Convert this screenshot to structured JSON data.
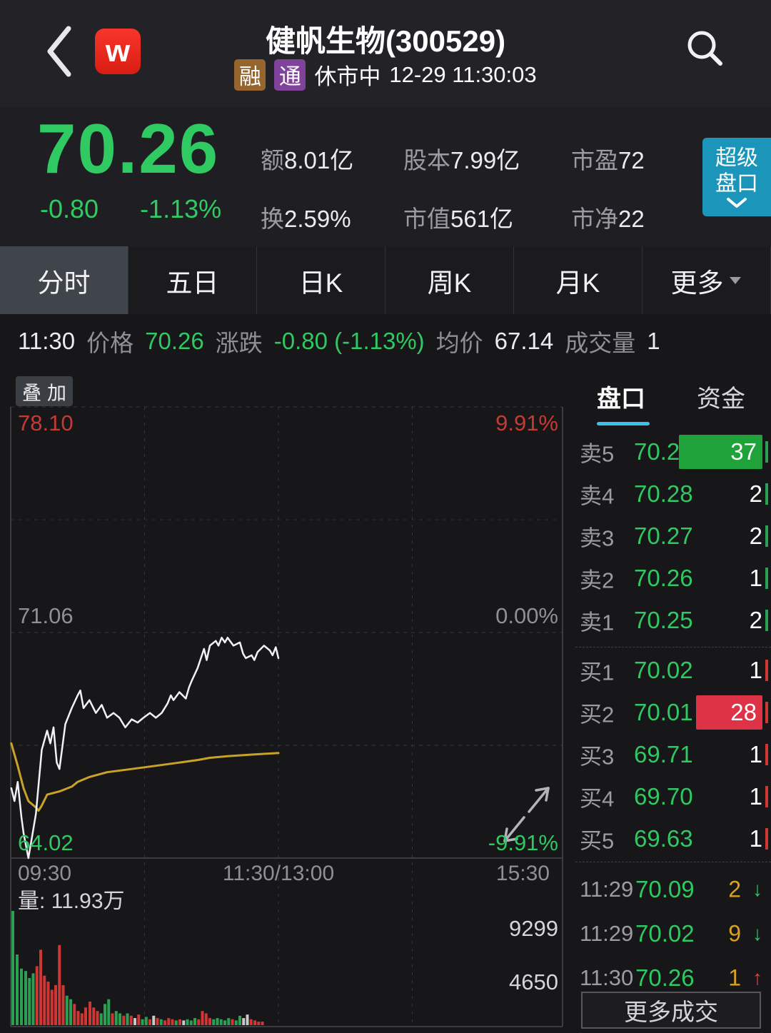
{
  "header": {
    "title": "健帆生物(300529)",
    "tags": [
      "融",
      "通"
    ],
    "status": "休市中",
    "datetime": "12-29 11:30:03"
  },
  "quote": {
    "price": "70.26",
    "change": "-0.80",
    "change_pct": "-1.13%",
    "stats": [
      {
        "label": "额",
        "value": "8.01亿"
      },
      {
        "label": "股本",
        "value": "7.99亿"
      },
      {
        "label": "市盈",
        "value": "72"
      },
      {
        "label": "换",
        "value": "2.59%"
      },
      {
        "label": "市值",
        "value": "561亿"
      },
      {
        "label": "市净",
        "value": "22"
      }
    ],
    "super_button": "超级盘口"
  },
  "tabs": [
    {
      "label": "分时",
      "active": true
    },
    {
      "label": "五日",
      "active": false
    },
    {
      "label": "日K",
      "active": false
    },
    {
      "label": "周K",
      "active": false
    },
    {
      "label": "月K",
      "active": false
    },
    {
      "label": "更多",
      "active": false,
      "has_caret": true
    }
  ],
  "ticker": {
    "time": "11:30",
    "price_label": "价格",
    "price": "70.26",
    "change_label": "涨跌",
    "change": "-0.80 (-1.13%)",
    "avg_label": "均价",
    "avg": "67.14",
    "vol_label": "成交量",
    "vol": "1"
  },
  "chart": {
    "overlay_button": "叠加",
    "y_left": [
      "78.10",
      "71.06",
      "64.02"
    ],
    "y_right": [
      "9.91%",
      "0.00%",
      "-9.91%"
    ],
    "x_labels": [
      "09:30",
      "11:30/13:00",
      "15:30"
    ],
    "volume_label": "量: 11.93万",
    "volume_ticks": [
      "9299",
      "4650"
    ],
    "axis": {
      "high": 78.1,
      "mid": 71.06,
      "low": 64.02
    },
    "price_line": [
      [
        0.001,
        66.2
      ],
      [
        0.007,
        65.8
      ],
      [
        0.013,
        66.4
      ],
      [
        0.02,
        65.3
      ],
      [
        0.024,
        64.8
      ],
      [
        0.033,
        64.02
      ],
      [
        0.04,
        64.7
      ],
      [
        0.047,
        65.4
      ],
      [
        0.058,
        67.4
      ],
      [
        0.068,
        68.0
      ],
      [
        0.074,
        67.6
      ],
      [
        0.08,
        68.1
      ],
      [
        0.086,
        67.0
      ],
      [
        0.091,
        66.8
      ],
      [
        0.102,
        68.2
      ],
      [
        0.114,
        68.7
      ],
      [
        0.125,
        69.1
      ],
      [
        0.13,
        69.25
      ],
      [
        0.136,
        68.7
      ],
      [
        0.147,
        68.95
      ],
      [
        0.159,
        68.55
      ],
      [
        0.17,
        68.8
      ],
      [
        0.18,
        68.4
      ],
      [
        0.192,
        68.55
      ],
      [
        0.203,
        68.4
      ],
      [
        0.214,
        68.1
      ],
      [
        0.226,
        68.35
      ],
      [
        0.237,
        68.25
      ],
      [
        0.248,
        68.4
      ],
      [
        0.26,
        68.55
      ],
      [
        0.271,
        68.4
      ],
      [
        0.282,
        68.55
      ],
      [
        0.293,
        68.85
      ],
      [
        0.299,
        69.1
      ],
      [
        0.304,
        68.95
      ],
      [
        0.315,
        69.2
      ],
      [
        0.327,
        69.0
      ],
      [
        0.333,
        69.35
      ],
      [
        0.338,
        69.55
      ],
      [
        0.349,
        69.95
      ],
      [
        0.361,
        70.55
      ],
      [
        0.366,
        70.2
      ],
      [
        0.372,
        70.65
      ],
      [
        0.383,
        70.8
      ],
      [
        0.388,
        70.65
      ],
      [
        0.394,
        70.9
      ],
      [
        0.4,
        70.75
      ],
      [
        0.405,
        70.9
      ],
      [
        0.416,
        70.65
      ],
      [
        0.428,
        70.75
      ],
      [
        0.434,
        70.4
      ],
      [
        0.439,
        70.26
      ],
      [
        0.45,
        70.35
      ],
      [
        0.455,
        70.2
      ],
      [
        0.461,
        70.45
      ],
      [
        0.473,
        70.65
      ],
      [
        0.484,
        70.5
      ],
      [
        0.489,
        70.35
      ],
      [
        0.495,
        70.6
      ],
      [
        0.5,
        70.26
      ]
    ],
    "avg_line": [
      [
        0.001,
        67.6
      ],
      [
        0.013,
        66.9
      ],
      [
        0.024,
        66.2
      ],
      [
        0.033,
        65.8
      ],
      [
        0.047,
        65.6
      ],
      [
        0.052,
        65.5
      ],
      [
        0.058,
        65.66
      ],
      [
        0.068,
        66.0
      ],
      [
        0.091,
        66.1
      ],
      [
        0.114,
        66.25
      ],
      [
        0.125,
        66.4
      ],
      [
        0.147,
        66.55
      ],
      [
        0.18,
        66.7
      ],
      [
        0.226,
        66.8
      ],
      [
        0.271,
        66.9
      ],
      [
        0.315,
        67.0
      ],
      [
        0.349,
        67.08
      ],
      [
        0.372,
        67.15
      ],
      [
        0.405,
        67.2
      ],
      [
        0.45,
        67.25
      ],
      [
        0.5,
        67.3
      ]
    ],
    "volume_bars": [
      [
        0.004,
        0.97,
        "g"
      ],
      [
        0.012,
        0.6,
        "g"
      ],
      [
        0.02,
        0.48,
        "g"
      ],
      [
        0.028,
        0.46,
        "g"
      ],
      [
        0.035,
        0.4,
        "g"
      ],
      [
        0.042,
        0.44,
        "g"
      ],
      [
        0.049,
        0.5,
        "r"
      ],
      [
        0.056,
        0.64,
        "r"
      ],
      [
        0.063,
        0.42,
        "r"
      ],
      [
        0.07,
        0.37,
        "r"
      ],
      [
        0.077,
        0.3,
        "r"
      ],
      [
        0.084,
        0.34,
        "r"
      ],
      [
        0.091,
        0.68,
        "r"
      ],
      [
        0.098,
        0.34,
        "r"
      ],
      [
        0.105,
        0.25,
        "g"
      ],
      [
        0.112,
        0.22,
        "g"
      ],
      [
        0.119,
        0.18,
        "r"
      ],
      [
        0.126,
        0.12,
        "r"
      ],
      [
        0.133,
        0.1,
        "r"
      ],
      [
        0.14,
        0.15,
        "r"
      ],
      [
        0.148,
        0.2,
        "r"
      ],
      [
        0.155,
        0.15,
        "r"
      ],
      [
        0.162,
        0.12,
        "r"
      ],
      [
        0.169,
        0.1,
        "g"
      ],
      [
        0.176,
        0.18,
        "g"
      ],
      [
        0.183,
        0.22,
        "g"
      ],
      [
        0.19,
        0.1,
        "r"
      ],
      [
        0.197,
        0.12,
        "g"
      ],
      [
        0.204,
        0.1,
        "g"
      ],
      [
        0.211,
        0.08,
        "r"
      ],
      [
        0.218,
        0.1,
        "g"
      ],
      [
        0.225,
        0.08,
        "r"
      ],
      [
        0.232,
        0.06,
        "w"
      ],
      [
        0.239,
        0.09,
        "r"
      ],
      [
        0.246,
        0.05,
        "g"
      ],
      [
        0.253,
        0.07,
        "g"
      ],
      [
        0.26,
        0.05,
        "r"
      ],
      [
        0.267,
        0.08,
        "w"
      ],
      [
        0.274,
        0.06,
        "r"
      ],
      [
        0.281,
        0.05,
        "g"
      ],
      [
        0.288,
        0.04,
        "r"
      ],
      [
        0.295,
        0.06,
        "r"
      ],
      [
        0.302,
        0.05,
        "r"
      ],
      [
        0.309,
        0.04,
        "g"
      ],
      [
        0.316,
        0.05,
        "r"
      ],
      [
        0.323,
        0.04,
        "w"
      ],
      [
        0.33,
        0.05,
        "g"
      ],
      [
        0.337,
        0.04,
        "g"
      ],
      [
        0.344,
        0.06,
        "g"
      ],
      [
        0.351,
        0.05,
        "r"
      ],
      [
        0.358,
        0.12,
        "r"
      ],
      [
        0.365,
        0.1,
        "r"
      ],
      [
        0.372,
        0.06,
        "r"
      ],
      [
        0.379,
        0.05,
        "g"
      ],
      [
        0.386,
        0.06,
        "g"
      ],
      [
        0.393,
        0.05,
        "g"
      ],
      [
        0.4,
        0.04,
        "g"
      ],
      [
        0.407,
        0.06,
        "g"
      ],
      [
        0.414,
        0.05,
        "r"
      ],
      [
        0.421,
        0.04,
        "g"
      ],
      [
        0.428,
        0.08,
        "g"
      ],
      [
        0.435,
        0.06,
        "w"
      ],
      [
        0.442,
        0.09,
        "w"
      ],
      [
        0.449,
        0.05,
        "r"
      ],
      [
        0.456,
        0.04,
        "r"
      ],
      [
        0.463,
        0.03,
        "r"
      ],
      [
        0.47,
        0.03,
        "r"
      ]
    ]
  },
  "orderbook": {
    "tabs": [
      {
        "label": "盘口",
        "active": true
      },
      {
        "label": "资金",
        "active": false
      }
    ],
    "asks": [
      {
        "label": "卖5",
        "price": "70.29",
        "qty": "37",
        "highlight": "g"
      },
      {
        "label": "卖4",
        "price": "70.28",
        "qty": "2",
        "highlight": null
      },
      {
        "label": "卖3",
        "price": "70.27",
        "qty": "2",
        "highlight": null
      },
      {
        "label": "卖2",
        "price": "70.26",
        "qty": "1",
        "highlight": null
      },
      {
        "label": "卖1",
        "price": "70.25",
        "qty": "2",
        "highlight": null
      }
    ],
    "bids": [
      {
        "label": "买1",
        "price": "70.02",
        "qty": "1",
        "highlight": null
      },
      {
        "label": "买2",
        "price": "70.01",
        "qty": "28",
        "highlight": "r"
      },
      {
        "label": "买3",
        "price": "69.71",
        "qty": "1",
        "highlight": null
      },
      {
        "label": "买4",
        "price": "69.70",
        "qty": "1",
        "highlight": null
      },
      {
        "label": "买5",
        "price": "69.63",
        "qty": "1",
        "highlight": null
      }
    ]
  },
  "trades": {
    "rows": [
      {
        "time": "11:29",
        "price": "70.09",
        "qty": "2",
        "dir": "down"
      },
      {
        "time": "11:29",
        "price": "70.02",
        "qty": "9",
        "dir": "down"
      },
      {
        "time": "11:30",
        "price": "70.26",
        "qty": "1",
        "dir": "up"
      }
    ],
    "more_label": "更多成交"
  },
  "colors": {
    "green": "#2fc862",
    "red": "#c43b35",
    "teal_button": "#1b96ba",
    "tab_underline": "#3cc0ec",
    "avg_line": "#c9a227",
    "trade_qty_yellow": "#d8a21e",
    "ask_flash_green": "#1fa23a",
    "bid_flash_red": "#de3347",
    "price_line": "#f2f2f4",
    "background": "#17171a"
  }
}
